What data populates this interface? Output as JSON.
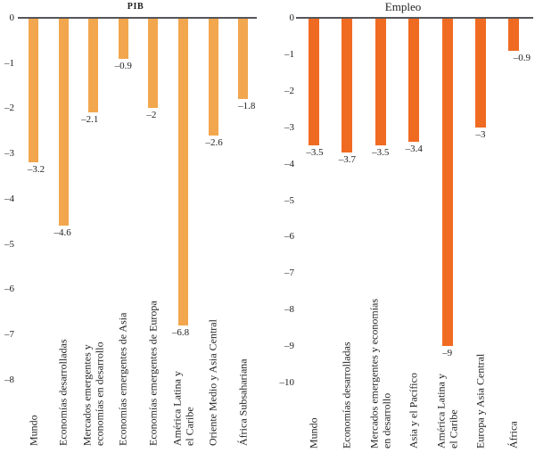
{
  "figure": {
    "background": "#ffffff",
    "text_color": "#1f1f1f",
    "axis_color": "#55565a"
  },
  "chart_data": [
    {
      "type": "bar",
      "title": "PIB",
      "orientation": "vertical",
      "grid": false,
      "legend": false,
      "bar_color": "#F2A64D",
      "ylim": [
        -8,
        0
      ],
      "yticks": [
        0,
        -1,
        -2,
        -3,
        -4,
        -5,
        -6,
        -7,
        -8
      ],
      "ytick_labels": [
        "0",
        "–1",
        "–2",
        "–3",
        "–4",
        "–5",
        "–6",
        "–7",
        "–8"
      ],
      "categories": [
        "Mundo",
        "Economías desarrolladas",
        "Mercados emergentes y\neconomías en desarrollo",
        "Economías emergentes de Asia",
        "Economías emergentes de Europa",
        "América Latina y\nel Caribe",
        "Oriente Medio y Asia Central",
        "África Subsahariana"
      ],
      "values": [
        -3.2,
        -4.6,
        -2.1,
        -0.9,
        -2,
        -6.8,
        -2.6,
        -1.8
      ],
      "value_labels": [
        "–3.2",
        "–4.6",
        "–2.1",
        "–0.9",
        "–2",
        "–6.8",
        "–2.6",
        "–1.8"
      ]
    },
    {
      "type": "bar",
      "title": "Empleo",
      "orientation": "vertical",
      "grid": false,
      "legend": false,
      "bar_color": "#F06B22",
      "ylim": [
        -10,
        0
      ],
      "yticks": [
        0,
        -1,
        -2,
        -3,
        -4,
        -5,
        -6,
        -7,
        -8,
        -9,
        -10
      ],
      "ytick_labels": [
        "0",
        "–1",
        "–2",
        "–3",
        "–4",
        "–5",
        "–6",
        "–7",
        "–8",
        "–9",
        "–10"
      ],
      "categories": [
        "Mundo",
        "Economías desarrolladas",
        "Mercados emergentes y economías\nen desarrollo",
        "Asia y el Pacífico",
        "América Latina y\nel Caribe",
        "Europa y Asia Central",
        "África"
      ],
      "values": [
        -3.5,
        -3.7,
        -3.5,
        -3.4,
        -9,
        -3,
        -0.9
      ],
      "value_labels": [
        "–3.5",
        "–3.7",
        "–3.5",
        "–3.4",
        "–9",
        "–3",
        "–0.9"
      ]
    }
  ]
}
